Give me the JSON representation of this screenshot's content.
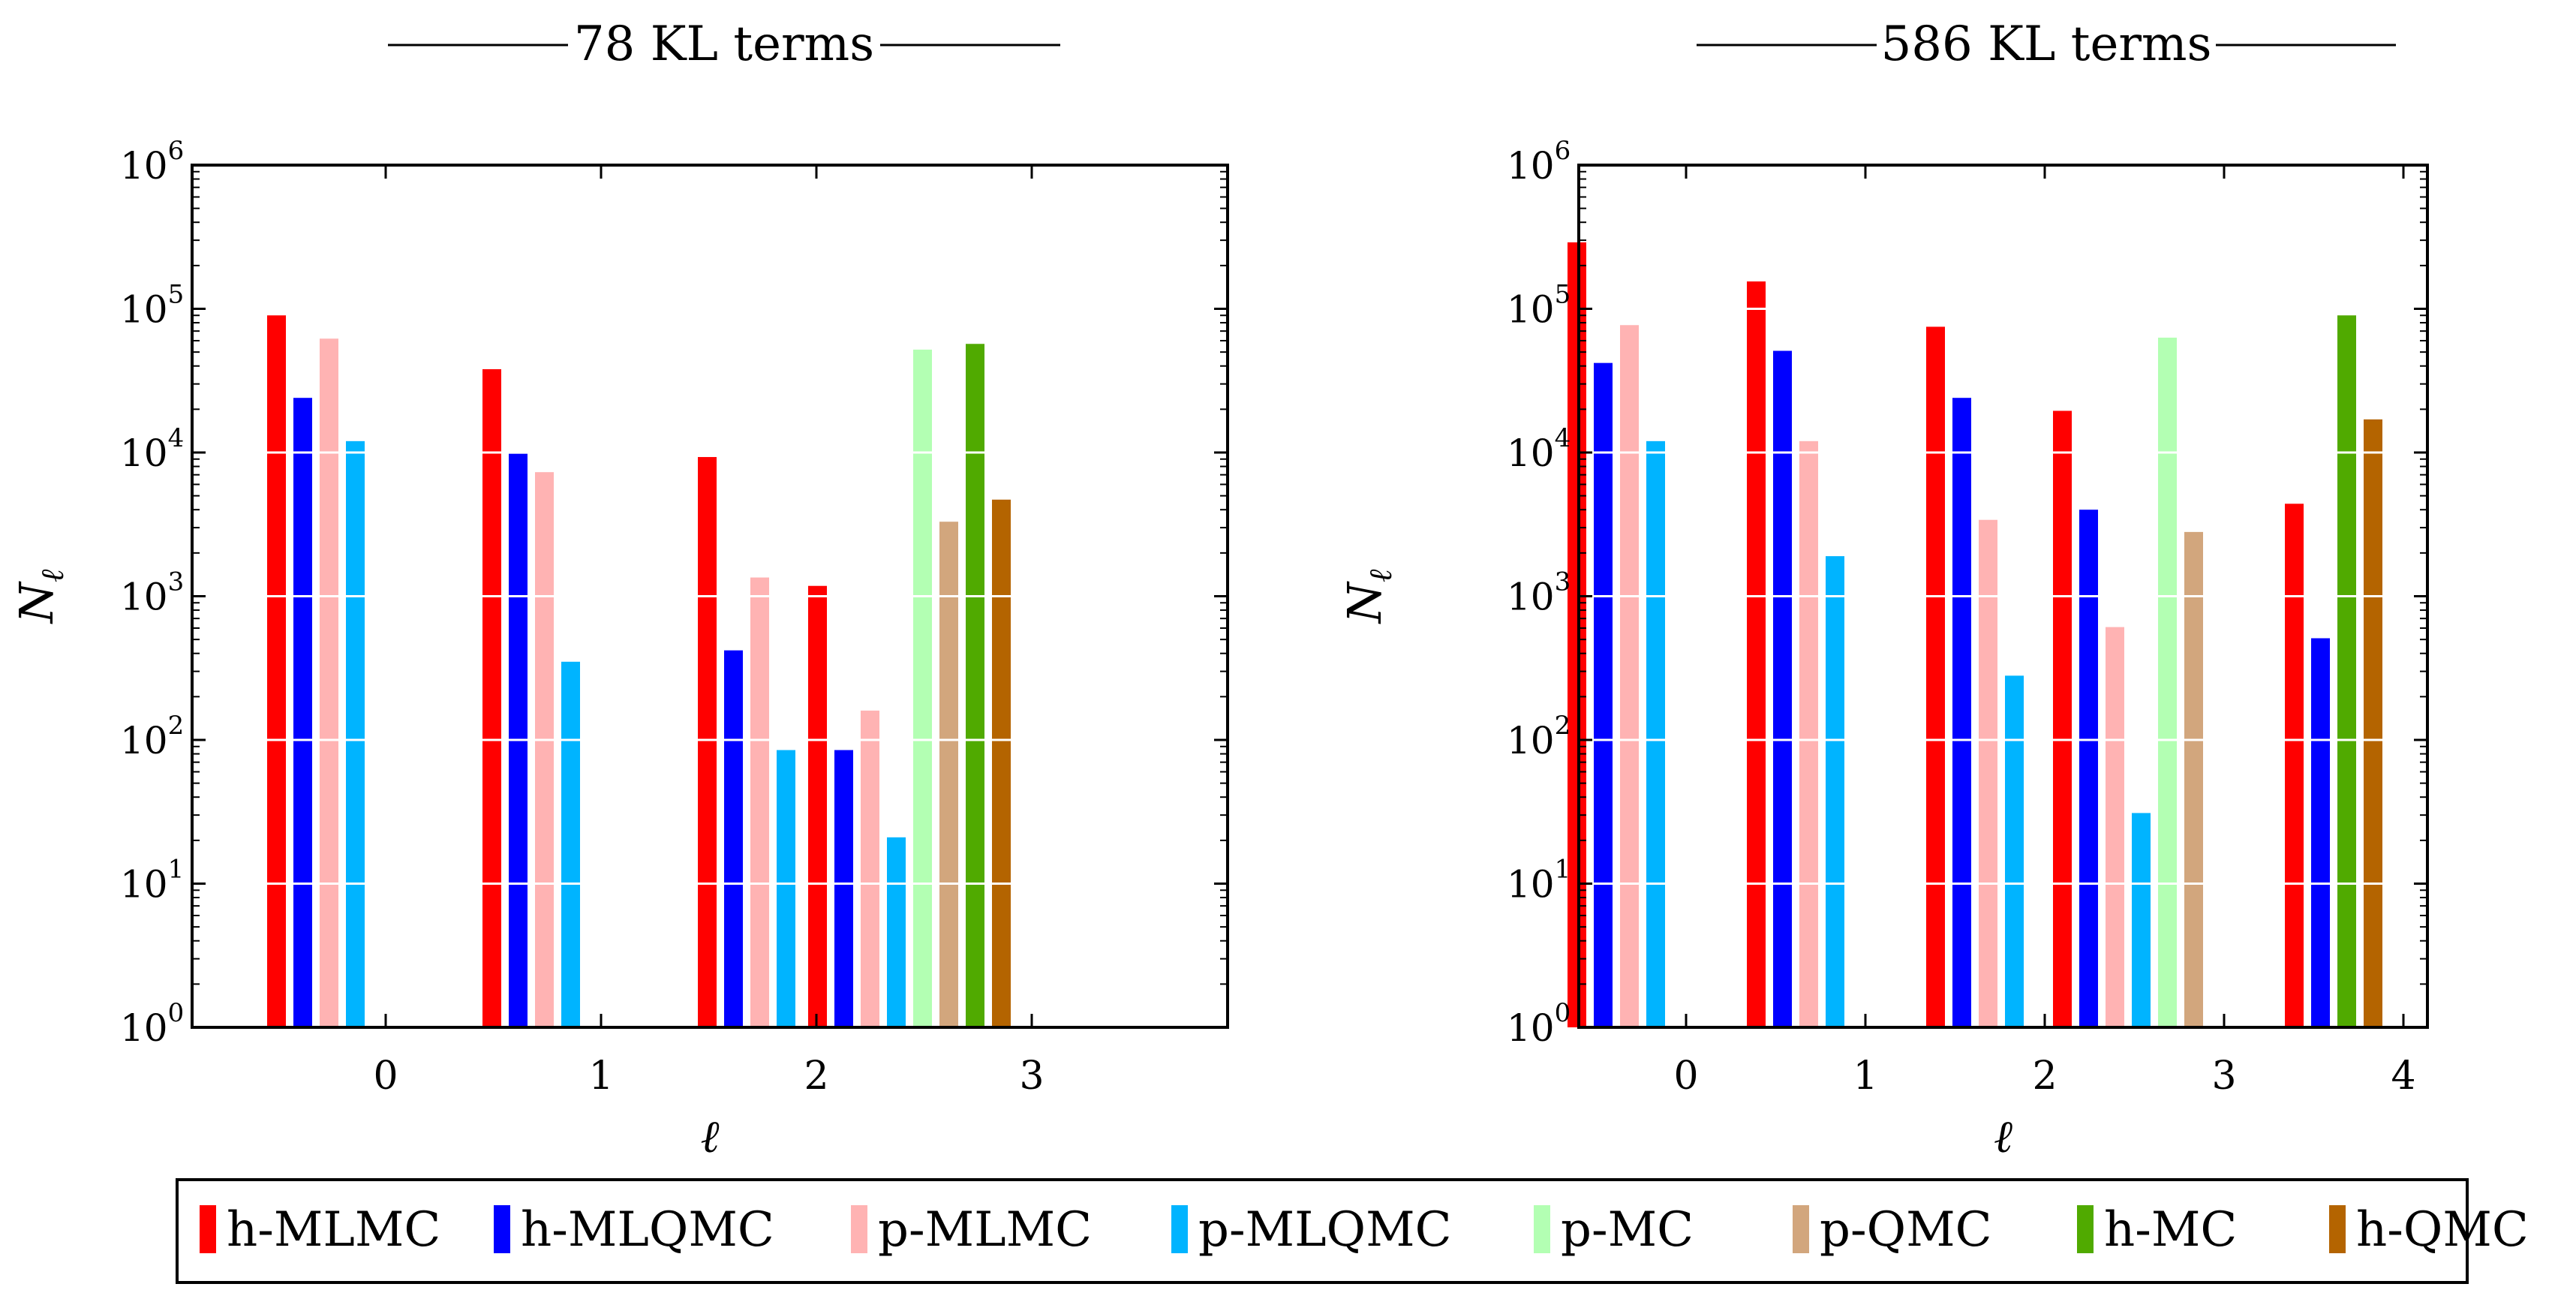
{
  "chart_data": [
    {
      "type": "bar",
      "title": "78 KL terms",
      "xlabel": "ℓ",
      "ylabel": "N",
      "ylabel_sub": "ℓ",
      "yscale": "log",
      "ylim_exp": [
        0,
        6
      ],
      "categories": [
        "0",
        "1",
        "2",
        "3"
      ],
      "series": [
        {
          "name": "h-MLMC",
          "values": [
            90000,
            38000,
            9300,
            1180
          ]
        },
        {
          "name": "h-MLQMC",
          "values": [
            24000,
            9800,
            420,
            85
          ]
        },
        {
          "name": "p-MLMC",
          "values": [
            62000,
            7300,
            1350,
            160
          ]
        },
        {
          "name": "p-MLQMC",
          "values": [
            12000,
            350,
            85,
            21
          ]
        },
        {
          "name": "p-MC",
          "values": [
            null,
            null,
            null,
            52000
          ]
        },
        {
          "name": "p-QMC",
          "values": [
            null,
            null,
            null,
            3300
          ]
        },
        {
          "name": "h-MC",
          "values": [
            null,
            null,
            null,
            57000
          ]
        },
        {
          "name": "h-QMC",
          "values": [
            null,
            null,
            null,
            4700
          ]
        }
      ]
    },
    {
      "type": "bar",
      "title": "586 KL terms",
      "xlabel": "ℓ",
      "ylabel": "N",
      "ylabel_sub": "ℓ",
      "yscale": "log",
      "ylim_exp": [
        0,
        6
      ],
      "categories": [
        "0",
        "1",
        "2",
        "3",
        "4"
      ],
      "series": [
        {
          "name": "h-MLMC",
          "values": [
            290000,
            155000,
            75000,
            19500,
            4400
          ]
        },
        {
          "name": "h-MLQMC",
          "values": [
            42000,
            51000,
            24000,
            4000,
            510
          ]
        },
        {
          "name": "p-MLMC",
          "values": [
            77000,
            12000,
            3400,
            610,
            null
          ]
        },
        {
          "name": "p-MLQMC",
          "values": [
            12000,
            1900,
            280,
            31,
            null
          ]
        },
        {
          "name": "p-MC",
          "values": [
            null,
            null,
            null,
            63000,
            null
          ]
        },
        {
          "name": "p-QMC",
          "values": [
            null,
            null,
            null,
            2800,
            null
          ]
        },
        {
          "name": "h-MC",
          "values": [
            null,
            null,
            null,
            null,
            90000
          ]
        },
        {
          "name": "h-QMC",
          "values": [
            null,
            null,
            null,
            null,
            17000
          ]
        }
      ]
    }
  ],
  "legend": {
    "position": "bottom-center",
    "entries": [
      "h-MLMC",
      "h-MLQMC",
      "p-MLMC",
      "p-MLQMC",
      "p-MC",
      "p-QMC",
      "h-MC",
      "h-QMC"
    ]
  },
  "colors": {
    "h-MLMC": "#ff0000",
    "h-MLQMC": "#0000ff",
    "p-MLMC": "#ffb3b3",
    "p-MLQMC": "#00b4ff",
    "p-MC": "#b3ffb3",
    "p-QMC": "#d2a67d",
    "h-MC": "#50aa00",
    "h-QMC": "#b46400"
  }
}
